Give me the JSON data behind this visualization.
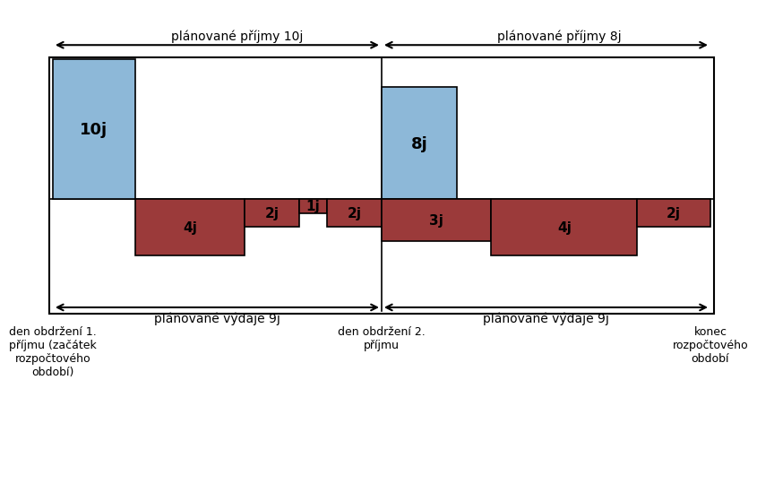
{
  "bg_color": "#ffffff",
  "blue_color": "#8db8d8",
  "red_color": "#9b3a3a",
  "black_color": "#000000",
  "label_income_left": "plánované příjmy 10j",
  "label_income_right": "plánované příjmy 8j",
  "label_expense_left": "plánované výdaje 9j",
  "label_expense_right": "plánované výdaje 9j",
  "label_bottom_left": "den obdržení 1.\npříjmu (začátek\nrozpočtového\nobd obí)",
  "label_bottom_mid": "den obdržení 2.\npříjmu",
  "label_bottom_right": "konec\nrozpočtového\nobd obí"
}
